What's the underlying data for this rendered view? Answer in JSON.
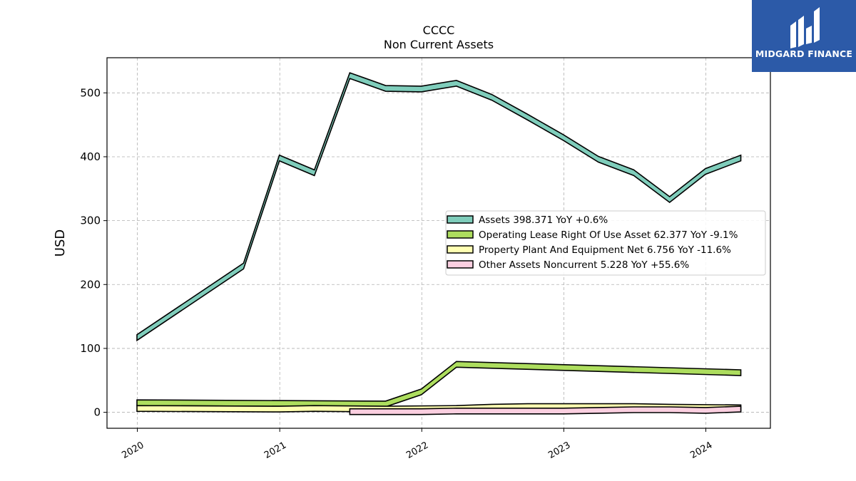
{
  "logo": {
    "text": "MIDGARD FINANCE",
    "icon": "midgard-logo-icon",
    "background": "#2c5aa8"
  },
  "chart_data": {
    "type": "area",
    "title": "CCCC",
    "subtitle": "Non Current  Assets",
    "ylabel": "USD",
    "xlabel": "",
    "x_ticks": [
      "2020",
      "2021",
      "2022",
      "2023",
      "2024"
    ],
    "y_ticks": [
      0,
      100,
      200,
      300,
      400,
      500
    ],
    "xlim": [
      "2019-10-15",
      "2024-06-15"
    ],
    "ylim": [
      -25,
      555
    ],
    "grid": true,
    "legend_position": "center-right",
    "series": [
      {
        "name": "Assets",
        "legend": "Assets  398.371 YoY +0.6%",
        "color": "#7fcdbb",
        "x": [
          "2019-12-31",
          "2020-09-30",
          "2020-12-31",
          "2021-03-31",
          "2021-06-30",
          "2021-09-30",
          "2021-12-31",
          "2022-03-31",
          "2022-06-30",
          "2022-09-30",
          "2022-12-31",
          "2023-03-31",
          "2023-06-30",
          "2023-09-30",
          "2023-12-31",
          "2024-03-31"
        ],
        "values": [
          117,
          229,
          398,
          375,
          527,
          507,
          506,
          515,
          493,
          462,
          430,
          396,
          375,
          333,
          377,
          398
        ]
      },
      {
        "name": "Operating Lease Right Of Use Asset",
        "legend": "Operating Lease Right Of Use Asset  62.377 YoY -9.1%",
        "color": "#addd5e",
        "x": [
          "2019-12-31",
          "2021-09-30",
          "2021-12-31",
          "2022-03-31",
          "2024-03-31"
        ],
        "values": [
          15,
          13,
          32,
          75,
          62
        ]
      },
      {
        "name": "Property Plant And Equipment Net",
        "legend": "Property Plant And Equipment Net  6.756 YoY -11.6%",
        "color": "#ffffb2",
        "x": [
          "2019-12-31",
          "2020-12-31",
          "2021-03-31",
          "2021-09-30",
          "2022-03-31",
          "2022-06-30",
          "2022-09-30",
          "2023-03-31",
          "2023-06-30",
          "2023-09-30",
          "2024-03-31"
        ],
        "values": [
          6,
          5,
          6,
          5,
          6,
          8,
          9,
          9,
          9,
          8,
          7
        ]
      },
      {
        "name": "Other Assets Noncurrent",
        "legend": "Other Assets Noncurrent  5.228 YoY +55.6%",
        "color": "#fbcfe0",
        "x": [
          "2021-06-30",
          "2021-09-30",
          "2021-12-31",
          "2022-03-31",
          "2022-06-30",
          "2022-09-30",
          "2022-12-31",
          "2023-03-31",
          "2023-06-30",
          "2023-09-30",
          "2023-12-31",
          "2024-03-31"
        ],
        "values": [
          1,
          1,
          1,
          2,
          2,
          2,
          2,
          3,
          4,
          4,
          3,
          5
        ]
      }
    ]
  }
}
